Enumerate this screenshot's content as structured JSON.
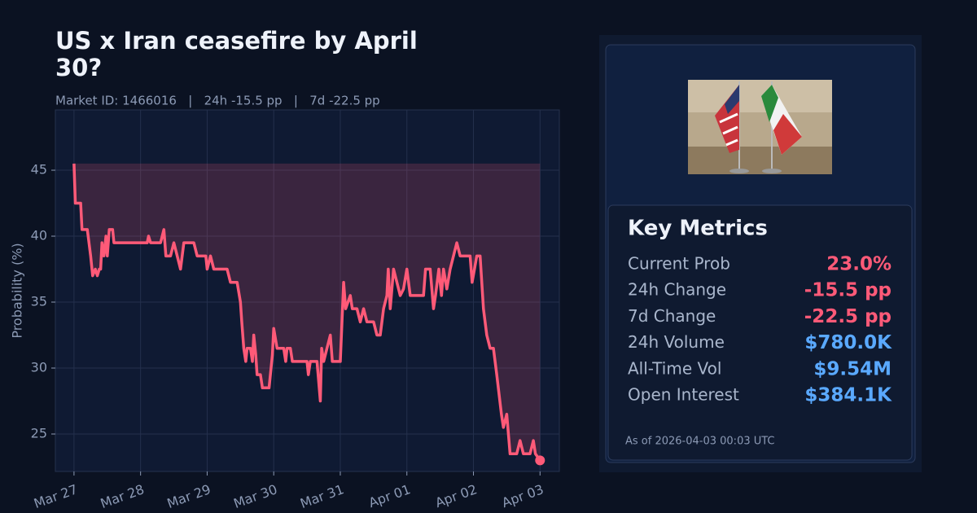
{
  "chart_data": {
    "type": "line",
    "title": "US x Iran ceasefire by April 30?",
    "subtitle": "Market ID: 1466016   |   24h -15.5 pp   |   7d -22.5 pp",
    "y_label": "Probability (%)",
    "x": [
      0,
      0.02,
      0.1,
      0.12,
      0.2,
      0.25,
      0.28,
      0.32,
      0.35,
      0.38,
      0.4,
      0.42,
      0.45,
      0.48,
      0.5,
      0.53,
      0.58,
      0.6,
      0.7,
      0.9,
      1.1,
      1.12,
      1.15,
      1.3,
      1.35,
      1.38,
      1.45,
      1.5,
      1.55,
      1.6,
      1.65,
      1.8,
      1.85,
      1.98,
      2.0,
      2.05,
      2.1,
      2.3,
      2.35,
      2.45,
      2.5,
      2.52,
      2.55,
      2.58,
      2.6,
      2.65,
      2.68,
      2.7,
      2.73,
      2.75,
      2.8,
      2.83,
      2.93,
      2.98,
      3.0,
      3.05,
      3.15,
      3.18,
      3.2,
      3.25,
      3.28,
      3.5,
      3.52,
      3.55,
      3.65,
      3.7,
      3.72,
      3.75,
      3.8,
      3.85,
      3.88,
      4.0,
      4.05,
      4.08,
      4.15,
      4.18,
      4.25,
      4.3,
      4.35,
      4.4,
      4.5,
      4.55,
      4.6,
      4.65,
      4.7,
      4.72,
      4.75,
      4.8,
      4.85,
      4.9,
      4.95,
      5.0,
      5.05,
      5.25,
      5.28,
      5.35,
      5.4,
      5.43,
      5.48,
      5.52,
      5.55,
      5.6,
      5.65,
      5.75,
      5.8,
      5.95,
      5.98,
      6.05,
      6.1,
      6.15,
      6.2,
      6.25,
      6.3,
      6.35,
      6.42,
      6.45,
      6.5,
      6.55,
      6.65,
      6.7,
      6.75,
      6.85,
      6.9,
      6.93,
      7.0
    ],
    "series": [
      {
        "name": "Probability",
        "color": "#ff5a78",
        "values": [
          45.5,
          42.5,
          42.5,
          40.5,
          40.5,
          38.5,
          37,
          37.5,
          37,
          37.5,
          37.5,
          39.5,
          38.5,
          40,
          38.5,
          40.5,
          40.5,
          39.5,
          39.5,
          39.5,
          39.5,
          40,
          39.5,
          39.5,
          40.5,
          38.5,
          38.5,
          39.5,
          38.5,
          37.5,
          39.5,
          39.5,
          38.5,
          38.5,
          37.5,
          38.5,
          37.5,
          37.5,
          36.5,
          36.5,
          35,
          33.5,
          31.5,
          30.5,
          31.5,
          31.5,
          30.5,
          32.5,
          31,
          29.5,
          29.5,
          28.5,
          28.5,
          31,
          33,
          31.5,
          31.5,
          30.5,
          31.5,
          31.5,
          30.5,
          30.5,
          29.5,
          30.5,
          30.5,
          27.5,
          31.5,
          30.5,
          31.5,
          32.5,
          30.5,
          30.5,
          36.5,
          34.5,
          35.5,
          34.5,
          34.5,
          33.5,
          34.5,
          33.5,
          33.5,
          32.5,
          32.5,
          34.5,
          35.5,
          37.5,
          34.5,
          37.5,
          36.5,
          35.5,
          36,
          37.5,
          35.5,
          35.5,
          37.5,
          37.5,
          34.5,
          35.5,
          37.5,
          35.5,
          37.5,
          36,
          37.5,
          39.5,
          38.5,
          38.5,
          36.5,
          38.5,
          38.5,
          34.5,
          32.5,
          31.5,
          31.5,
          29.5,
          26.5,
          25.5,
          26.5,
          23.5,
          23.5,
          24.5,
          23.5,
          23.5,
          24.5,
          23.5,
          23.0
        ]
      }
    ],
    "xlim": [
      -0.28,
      7.29
    ],
    "xticks": [
      {
        "value": 0,
        "label": "Mar 27"
      },
      {
        "value": 1,
        "label": "Mar 28"
      },
      {
        "value": 2,
        "label": "Mar 29"
      },
      {
        "value": 3,
        "label": "Mar 30"
      },
      {
        "value": 4,
        "label": "Mar 31"
      },
      {
        "value": 5,
        "label": "Apr 01"
      },
      {
        "value": 6,
        "label": "Apr 02"
      },
      {
        "value": 7,
        "label": "Apr 03"
      }
    ],
    "ylim": [
      22.16,
      49.57
    ],
    "yticks": [
      25,
      30,
      35,
      40,
      45
    ],
    "grid": true
  },
  "panel": {
    "metrics_title": "Key Metrics",
    "metrics": [
      {
        "label": "Current Prob",
        "value": "23.0%",
        "color": "#ff5a78"
      },
      {
        "label": "24h Change",
        "value": "-15.5 pp",
        "color": "#ff5a78"
      },
      {
        "label": "7d Change",
        "value": "-22.5 pp",
        "color": "#ff5a78"
      },
      {
        "label": "24h Volume",
        "value": "$780.0K",
        "color": "#5aa9ff"
      },
      {
        "label": "All-Time Vol",
        "value": "$9.54M",
        "color": "#5aa9ff"
      },
      {
        "label": "Open Interest",
        "value": "$384.1K",
        "color": "#5aa9ff"
      }
    ],
    "as_of": "As of 2026-04-03 00:03 UTC"
  }
}
